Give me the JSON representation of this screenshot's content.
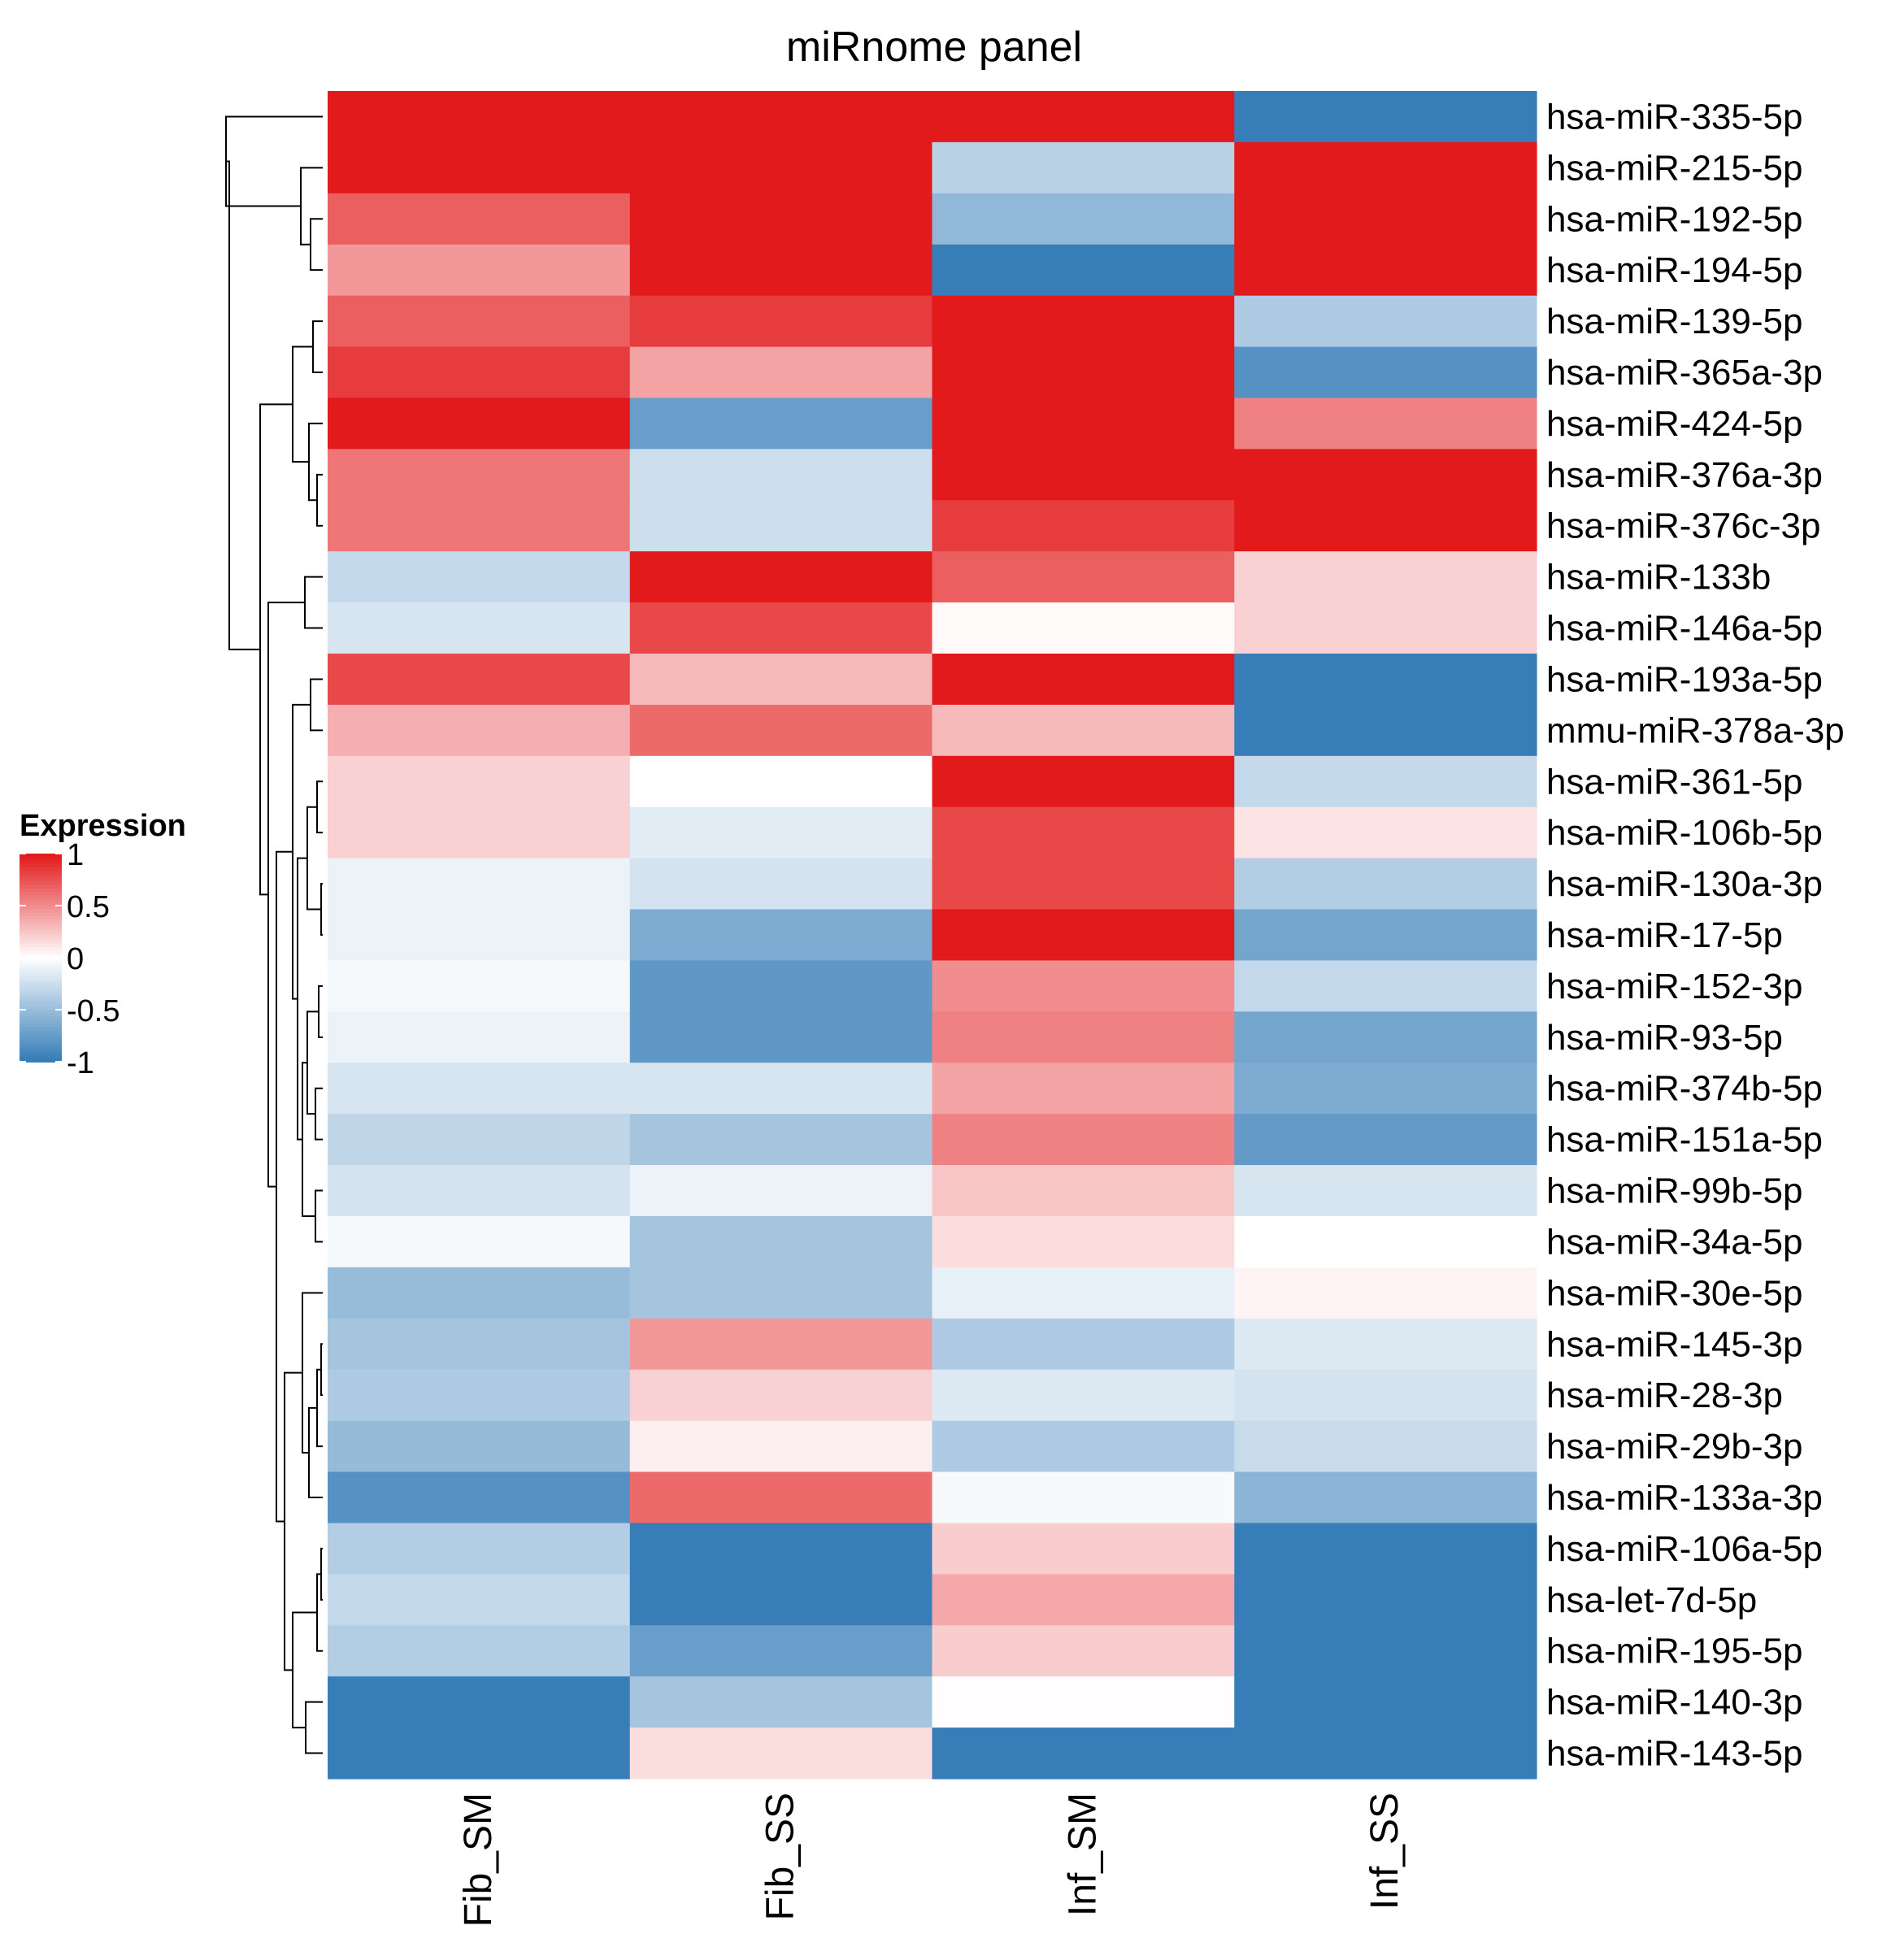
{
  "chart_data": {
    "type": "heatmap",
    "title": "miRnome panel",
    "columns": [
      "Fib_SM",
      "Fib_SS",
      "Inf_SM",
      "Inf_SS"
    ],
    "rows": [
      "hsa-miR-335-5p",
      "hsa-miR-215-5p",
      "hsa-miR-192-5p",
      "hsa-miR-194-5p",
      "hsa-miR-139-5p",
      "hsa-miR-365a-3p",
      "hsa-miR-424-5p",
      "hsa-miR-376a-3p",
      "hsa-miR-376c-3p",
      "hsa-miR-133b",
      "hsa-miR-146a-5p",
      "hsa-miR-193a-5p",
      "mmu-miR-378a-3p",
      "hsa-miR-361-5p",
      "hsa-miR-106b-5p",
      "hsa-miR-130a-3p",
      "hsa-miR-17-5p",
      "hsa-miR-152-3p",
      "hsa-miR-93-5p",
      "hsa-miR-374b-5p",
      "hsa-miR-151a-5p",
      "hsa-miR-99b-5p",
      "hsa-miR-34a-5p",
      "hsa-miR-30e-5p",
      "hsa-miR-145-3p",
      "hsa-miR-28-3p",
      "hsa-miR-29b-3p",
      "hsa-miR-133a-3p",
      "hsa-miR-106a-5p",
      "hsa-let-7d-5p",
      "hsa-miR-195-5p",
      "hsa-miR-140-3p",
      "hsa-miR-143-5p"
    ],
    "values": [
      [
        1.0,
        1.0,
        1.0,
        -1.0
      ],
      [
        1.0,
        1.0,
        -0.35,
        1.0
      ],
      [
        0.7,
        1.0,
        -0.55,
        1.0
      ],
      [
        0.45,
        1.0,
        -1.0,
        1.0
      ],
      [
        0.7,
        0.85,
        1.0,
        -0.4
      ],
      [
        0.85,
        0.4,
        1.0,
        -0.85
      ],
      [
        1.0,
        -0.75,
        1.0,
        0.55
      ],
      [
        0.6,
        -0.25,
        1.0,
        1.0
      ],
      [
        0.6,
        -0.25,
        0.85,
        1.0
      ],
      [
        -0.3,
        1.0,
        0.7,
        0.2
      ],
      [
        -0.2,
        0.8,
        0.02,
        0.2
      ],
      [
        0.8,
        0.3,
        1.0,
        -1.0
      ],
      [
        0.35,
        0.65,
        0.3,
        -1.0
      ],
      [
        0.2,
        0.0,
        1.0,
        -0.3
      ],
      [
        0.2,
        -0.15,
        0.8,
        0.12
      ],
      [
        -0.1,
        -0.22,
        0.8,
        -0.38
      ],
      [
        -0.1,
        -0.65,
        1.0,
        -0.7
      ],
      [
        -0.05,
        -0.8,
        0.5,
        -0.3
      ],
      [
        -0.1,
        -0.8,
        0.55,
        -0.7
      ],
      [
        -0.2,
        -0.2,
        0.4,
        -0.65
      ],
      [
        -0.32,
        -0.45,
        0.55,
        -0.78
      ],
      [
        -0.22,
        -0.1,
        0.25,
        -0.2
      ],
      [
        -0.05,
        -0.45,
        0.15,
        0.0
      ],
      [
        -0.52,
        -0.45,
        -0.12,
        0.05
      ],
      [
        -0.45,
        0.45,
        -0.4,
        -0.17
      ],
      [
        -0.4,
        0.2,
        -0.17,
        -0.22
      ],
      [
        -0.53,
        0.07,
        -0.4,
        -0.28
      ],
      [
        -0.85,
        0.65,
        -0.04,
        -0.58
      ],
      [
        -0.38,
        -1.0,
        0.22,
        -1.0
      ],
      [
        -0.3,
        -1.0,
        0.38,
        -1.0
      ],
      [
        -0.38,
        -0.75,
        0.22,
        -1.0
      ],
      [
        -1.0,
        -0.45,
        0.01,
        -1.0
      ],
      [
        -1.0,
        0.14,
        -1.0,
        -1.0
      ]
    ],
    "dendrogram_order_groups": "rows clustered hierarchically",
    "legend": {
      "title": "Expression",
      "ticks": [
        "1",
        "0.5",
        "0",
        "-0.5",
        "-1"
      ],
      "placement": "left"
    },
    "colors": {
      "high": "#e31a1c",
      "mid": "#ffffff",
      "low": "#377eb8"
    }
  }
}
